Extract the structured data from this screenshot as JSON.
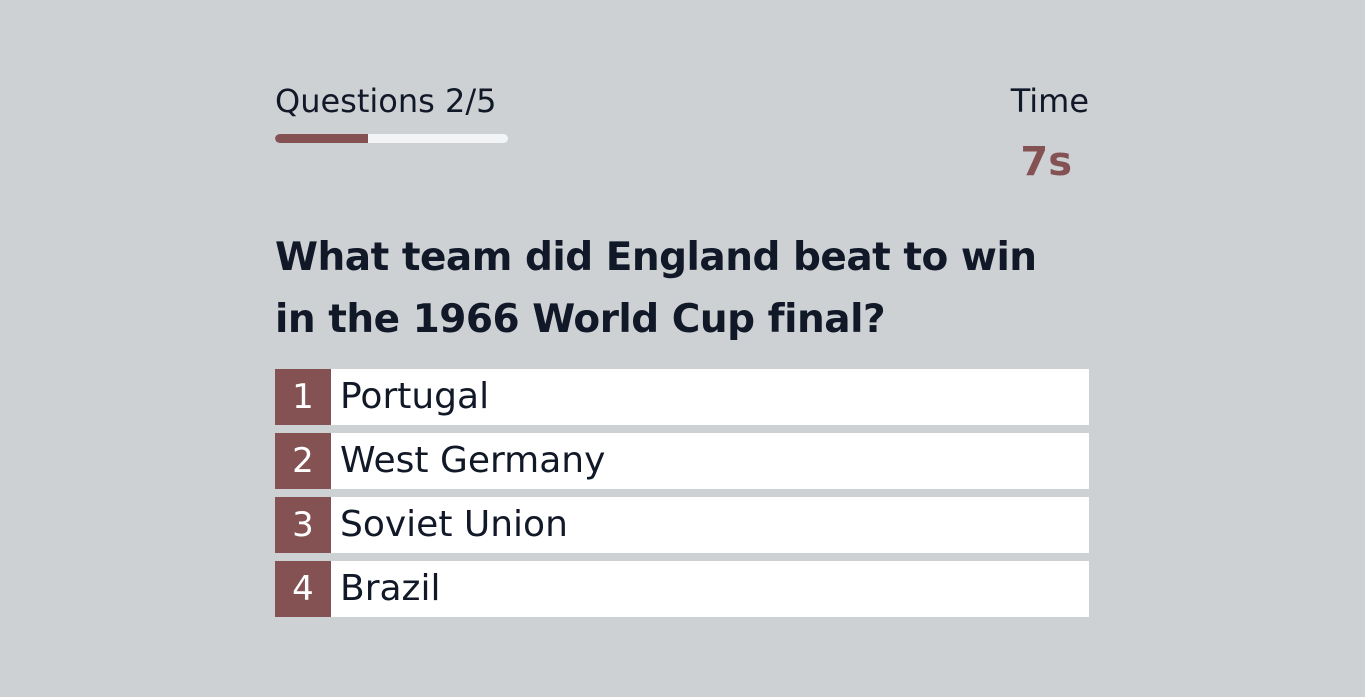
{
  "progress": {
    "label": "Questions 2/5",
    "fraction": 0.4
  },
  "timer": {
    "label": "Time",
    "value": "7s"
  },
  "question": {
    "text": "What team did England beat to win in the 1966 World Cup final?"
  },
  "answers": [
    {
      "number": "1",
      "text": "Portugal"
    },
    {
      "number": "2",
      "text": "West Germany"
    },
    {
      "number": "3",
      "text": "Soviet Union"
    },
    {
      "number": "4",
      "text": "Brazil"
    }
  ],
  "colors": {
    "background": "#cdd1d4",
    "accent": "#855254",
    "track": "#f3f4f6",
    "text": "#111827"
  }
}
